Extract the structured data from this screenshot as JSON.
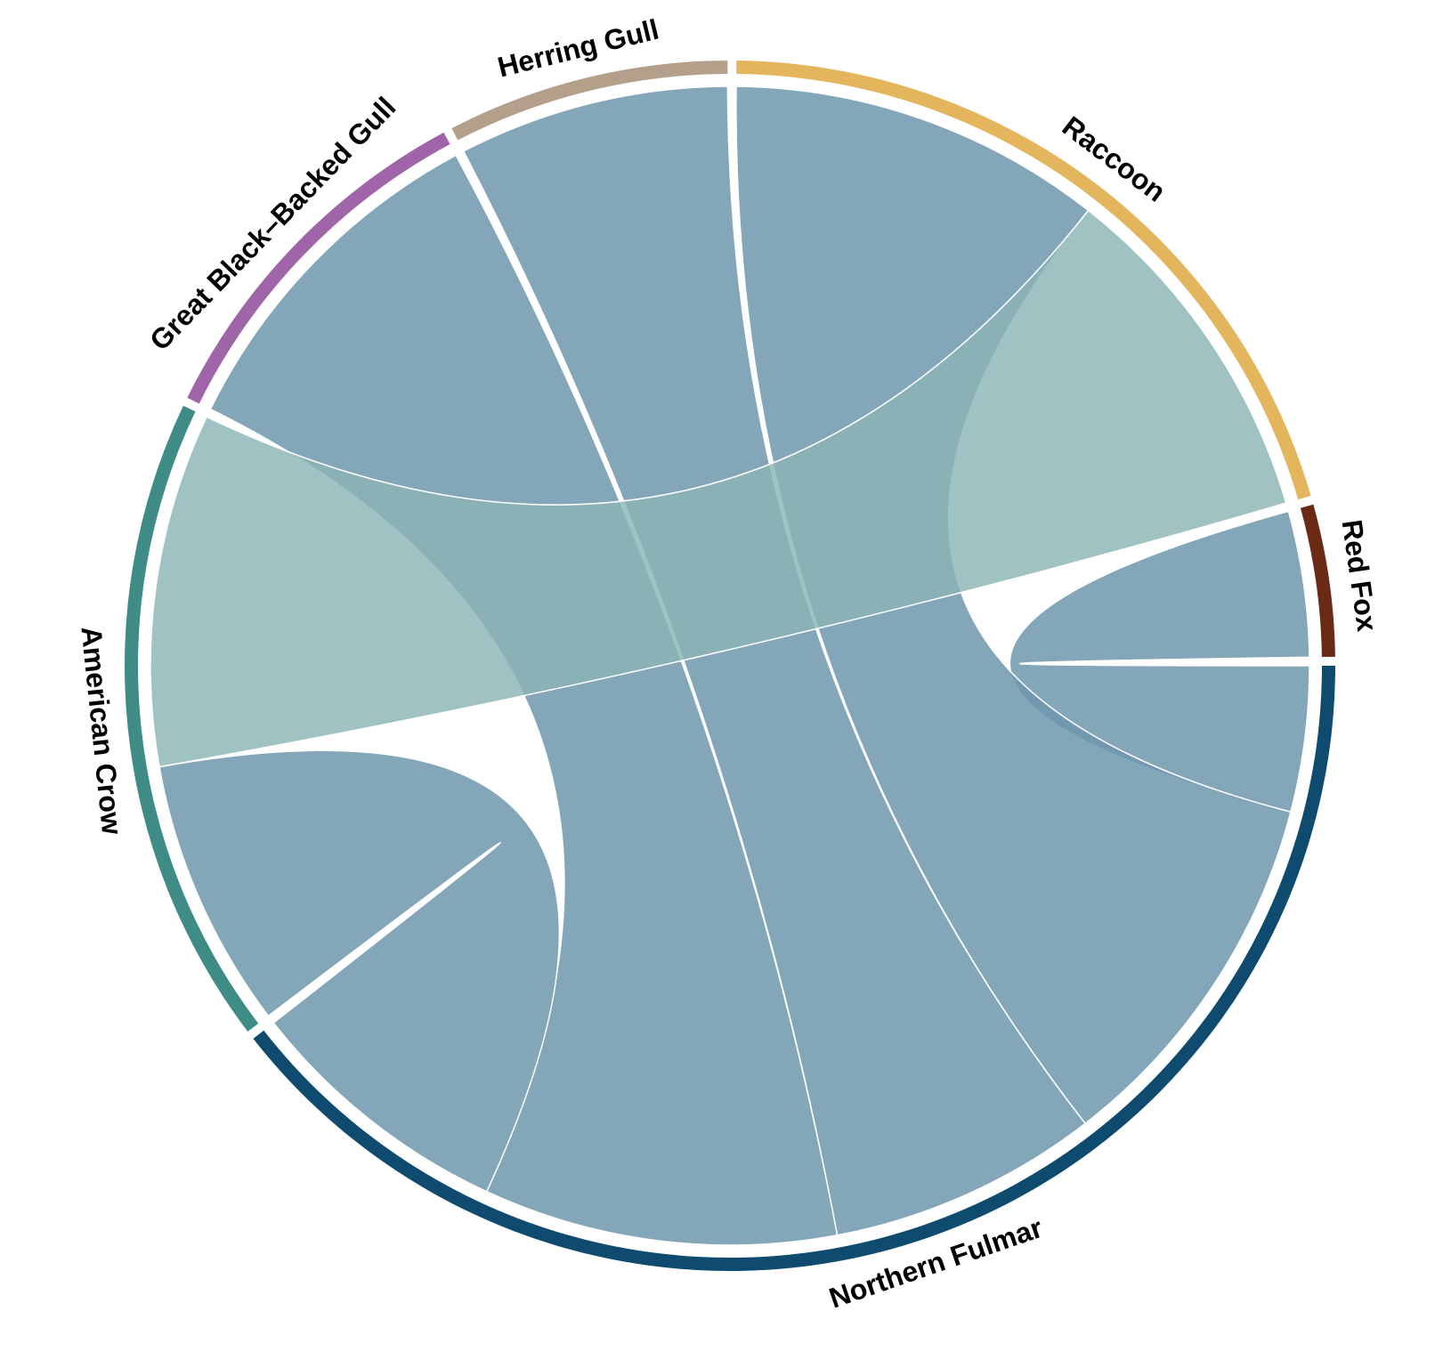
{
  "chart_data": {
    "type": "chord",
    "title": "",
    "sectors": [
      {
        "name": "Northern Fulmar",
        "color": "#0e4b6e"
      },
      {
        "name": "American Crow",
        "color": "#3f8b86"
      },
      {
        "name": "Great Black–Backed Gull",
        "color": "#a064a8"
      },
      {
        "name": "Herring Gull",
        "color": "#b4a08a"
      },
      {
        "name": "Raccoon",
        "color": "#e3b65e"
      },
      {
        "name": "Red Fox",
        "color": "#6b2a16"
      }
    ],
    "links": [
      {
        "from": "Northern Fulmar",
        "to": "Red Fox",
        "value": 7
      },
      {
        "from": "Northern Fulmar",
        "to": "Raccoon",
        "value": 18
      },
      {
        "from": "Northern Fulmar",
        "to": "Herring Gull",
        "value": 13
      },
      {
        "from": "Northern Fulmar",
        "to": "Great Black–Backed Gull",
        "value": 17
      },
      {
        "from": "Northern Fulmar",
        "to": "American Crow",
        "value": 13
      },
      {
        "from": "American Crow",
        "to": "Raccoon",
        "value": 17
      }
    ],
    "colors": {
      "link_default": "#6f96ad",
      "link_crow": "#8bb5b6",
      "background": "#ffffff"
    }
  }
}
